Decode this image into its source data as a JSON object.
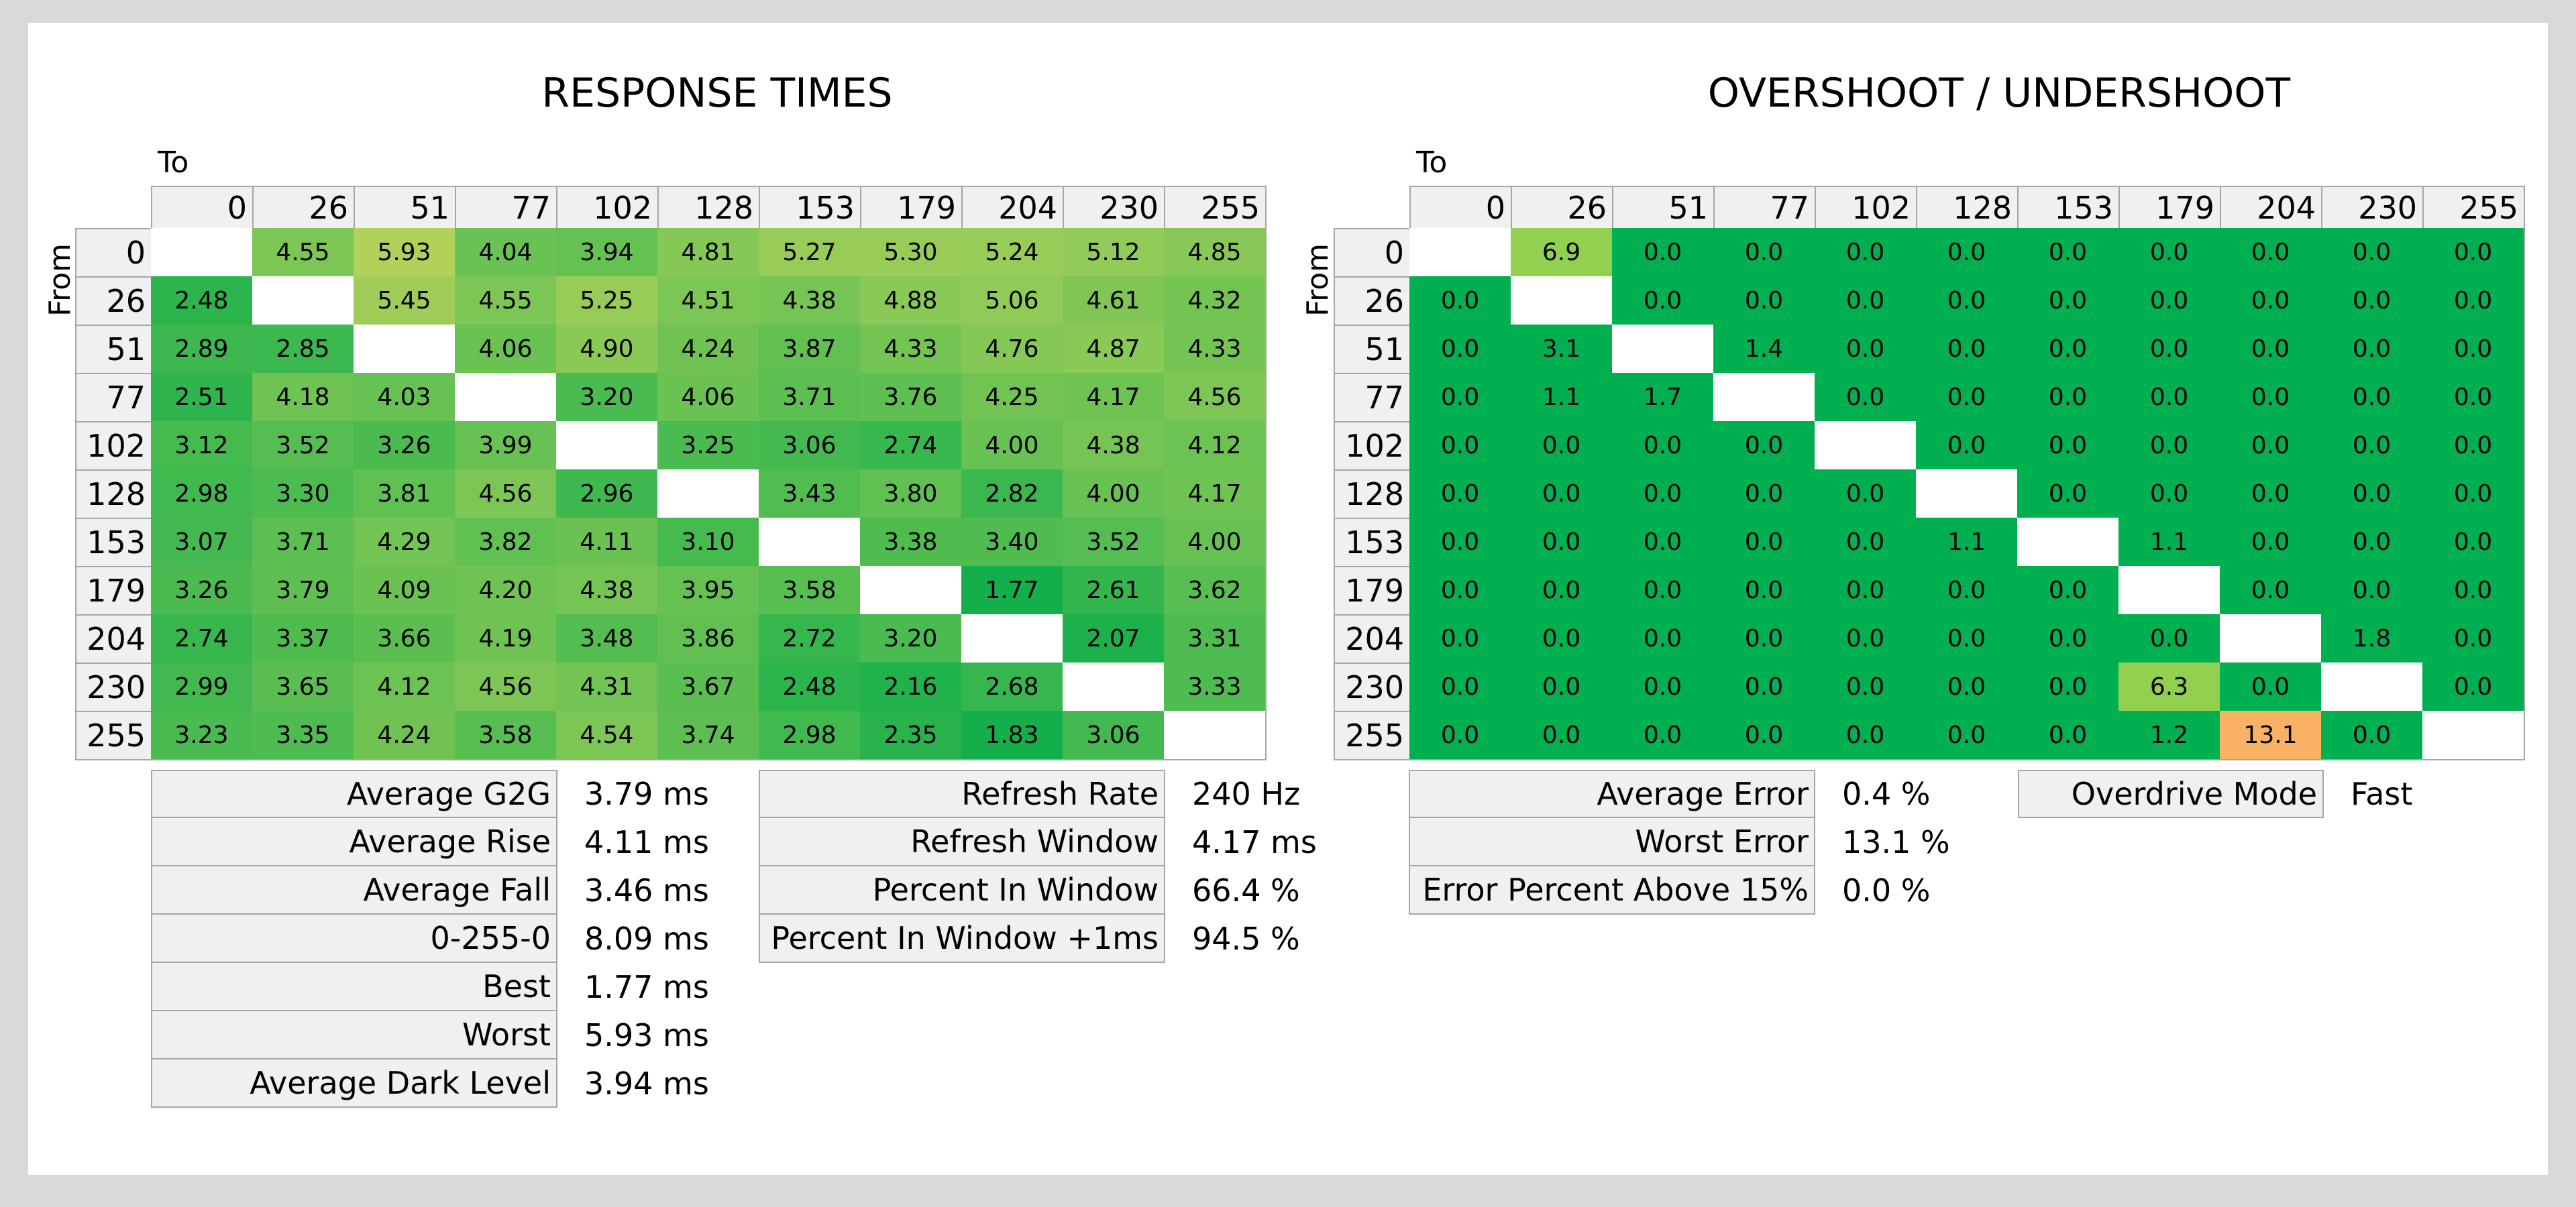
{
  "response": {
    "title": "RESPONSE TIMES",
    "to_label": "To",
    "from_label": "From"
  },
  "overshoot": {
    "title": "OVERSHOOT / UNDERSHOOT",
    "to_label": "To",
    "from_label": "From"
  },
  "chart_data": [
    {
      "type": "heatmap",
      "title": "RESPONSE TIMES",
      "xlabel": "To",
      "ylabel": "From",
      "x": [
        "0",
        "26",
        "51",
        "77",
        "102",
        "128",
        "153",
        "179",
        "204",
        "230",
        "255"
      ],
      "y": [
        "0",
        "26",
        "51",
        "77",
        "102",
        "128",
        "153",
        "179",
        "204",
        "230",
        "255"
      ],
      "values": [
        [
          "",
          "4.55",
          "5.93",
          "4.04",
          "3.94",
          "4.81",
          "5.27",
          "5.30",
          "5.24",
          "5.12",
          "4.85"
        ],
        [
          "2.48",
          "",
          "5.45",
          "4.55",
          "5.25",
          "4.51",
          "4.38",
          "4.88",
          "5.06",
          "4.61",
          "4.32"
        ],
        [
          "2.89",
          "2.85",
          "",
          "4.06",
          "4.90",
          "4.24",
          "3.87",
          "4.33",
          "4.76",
          "4.87",
          "4.33"
        ],
        [
          "2.51",
          "4.18",
          "4.03",
          "",
          "3.20",
          "4.06",
          "3.71",
          "3.76",
          "4.25",
          "4.17",
          "4.56"
        ],
        [
          "3.12",
          "3.52",
          "3.26",
          "3.99",
          "",
          "3.25",
          "3.06",
          "2.74",
          "4.00",
          "4.38",
          "4.12"
        ],
        [
          "2.98",
          "3.30",
          "3.81",
          "4.56",
          "2.96",
          "",
          "3.43",
          "3.80",
          "2.82",
          "4.00",
          "4.17"
        ],
        [
          "3.07",
          "3.71",
          "4.29",
          "3.82",
          "4.11",
          "3.10",
          "",
          "3.38",
          "3.40",
          "3.52",
          "4.00"
        ],
        [
          "3.26",
          "3.79",
          "4.09",
          "4.20",
          "4.38",
          "3.95",
          "3.58",
          "",
          "1.77",
          "2.61",
          "3.62"
        ],
        [
          "2.74",
          "3.37",
          "3.66",
          "4.19",
          "3.48",
          "3.86",
          "2.72",
          "3.20",
          "",
          "2.07",
          "3.31"
        ],
        [
          "2.99",
          "3.65",
          "4.12",
          "4.56",
          "4.31",
          "3.67",
          "2.48",
          "2.16",
          "2.68",
          "",
          "3.33"
        ],
        [
          "3.23",
          "3.35",
          "4.24",
          "3.58",
          "4.54",
          "3.74",
          "2.98",
          "2.35",
          "1.83",
          "3.06",
          ""
        ]
      ]
    },
    {
      "type": "heatmap",
      "title": "OVERSHOOT / UNDERSHOOT",
      "xlabel": "To",
      "ylabel": "From",
      "x": [
        "0",
        "26",
        "51",
        "77",
        "102",
        "128",
        "153",
        "179",
        "204",
        "230",
        "255"
      ],
      "y": [
        "0",
        "26",
        "51",
        "77",
        "102",
        "128",
        "153",
        "179",
        "204",
        "230",
        "255"
      ],
      "values": [
        [
          "",
          "6.9",
          "0.0",
          "0.0",
          "0.0",
          "0.0",
          "0.0",
          "0.0",
          "0.0",
          "0.0",
          "0.0"
        ],
        [
          "0.0",
          "",
          "0.0",
          "0.0",
          "0.0",
          "0.0",
          "0.0",
          "0.0",
          "0.0",
          "0.0",
          "0.0"
        ],
        [
          "0.0",
          "3.1",
          "",
          "1.4",
          "0.0",
          "0.0",
          "0.0",
          "0.0",
          "0.0",
          "0.0",
          "0.0"
        ],
        [
          "0.0",
          "1.1",
          "1.7",
          "",
          "0.0",
          "0.0",
          "0.0",
          "0.0",
          "0.0",
          "0.0",
          "0.0"
        ],
        [
          "0.0",
          "0.0",
          "0.0",
          "0.0",
          "",
          "0.0",
          "0.0",
          "0.0",
          "0.0",
          "0.0",
          "0.0"
        ],
        [
          "0.0",
          "0.0",
          "0.0",
          "0.0",
          "0.0",
          "",
          "0.0",
          "0.0",
          "0.0",
          "0.0",
          "0.0"
        ],
        [
          "0.0",
          "0.0",
          "0.0",
          "0.0",
          "0.0",
          "1.1",
          "",
          "1.1",
          "0.0",
          "0.0",
          "0.0"
        ],
        [
          "0.0",
          "0.0",
          "0.0",
          "0.0",
          "0.0",
          "0.0",
          "0.0",
          "",
          "0.0",
          "0.0",
          "0.0"
        ],
        [
          "0.0",
          "0.0",
          "0.0",
          "0.0",
          "0.0",
          "0.0",
          "0.0",
          "0.0",
          "",
          "1.8",
          "0.0"
        ],
        [
          "0.0",
          "0.0",
          "0.0",
          "0.0",
          "0.0",
          "0.0",
          "0.0",
          "6.3",
          "0.0",
          "",
          "0.0"
        ],
        [
          "0.0",
          "0.0",
          "0.0",
          "0.0",
          "0.0",
          "0.0",
          "0.0",
          "1.2",
          "13.1",
          "0.0",
          ""
        ]
      ]
    }
  ],
  "colors": {
    "rt_fast": "#0fae4a",
    "rt_slow": "#b4d25a",
    "os_good": "#00b050",
    "os_warn": "#92d050",
    "os_bad": "#f9b264",
    "header_bg": "#f0f0f0"
  },
  "stats_rt": [
    {
      "label": "Average G2G",
      "value": "3.79 ms"
    },
    {
      "label": "Average Rise",
      "value": "4.11 ms"
    },
    {
      "label": "Average Fall",
      "value": "3.46 ms"
    },
    {
      "label": "0-255-0",
      "value": "8.09 ms"
    },
    {
      "label": "Best",
      "value": "1.77 ms"
    },
    {
      "label": "Worst",
      "value": "5.93 ms"
    },
    {
      "label": "Average Dark Level",
      "value": "3.94 ms"
    }
  ],
  "stats_refresh": [
    {
      "label": "Refresh Rate",
      "value": "240 Hz"
    },
    {
      "label": "Refresh Window",
      "value": "4.17 ms"
    },
    {
      "label": "Percent In Window",
      "value": "66.4 %"
    },
    {
      "label": "Percent In Window +1ms",
      "value": "94.5 %"
    }
  ],
  "stats_error": [
    {
      "label": "Average Error",
      "value": "0.4 %"
    },
    {
      "label": "Worst Error",
      "value": "13.1 %"
    },
    {
      "label": "Error Percent Above 15%",
      "value": "0.0 %"
    }
  ],
  "stats_mode": [
    {
      "label": "Overdrive Mode",
      "value": "Fast"
    }
  ]
}
